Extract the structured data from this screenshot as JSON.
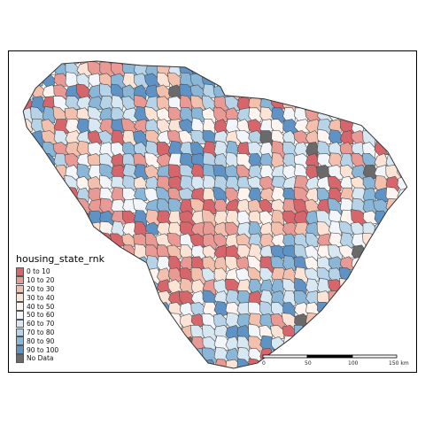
{
  "legend": {
    "title": "housing_state_rnk",
    "items": [
      {
        "label": "0 to 10",
        "color": "#d6666c"
      },
      {
        "label": "10 to 20",
        "color": "#e99a95"
      },
      {
        "label": "20 to 30",
        "color": "#f3c0ad"
      },
      {
        "label": "30 to 40",
        "color": "#fbe3d6"
      },
      {
        "label": "40 to 50",
        "color": "#fdf3ef"
      },
      {
        "label": "50 to 60",
        "color": "#f2f6fa"
      },
      {
        "label": "60 to 70",
        "color": "#d8e8f2"
      },
      {
        "label": "70 to 80",
        "color": "#b6d3e7"
      },
      {
        "label": "80 to 90",
        "color": "#8ab7d8"
      },
      {
        "label": "90 to 100",
        "color": "#5f93c6"
      },
      {
        "label": "No Data",
        "color": "#6a6a6a"
      }
    ]
  },
  "scale_bar": {
    "ticks": [
      "0",
      "50",
      "100",
      "150 km"
    ]
  }
}
